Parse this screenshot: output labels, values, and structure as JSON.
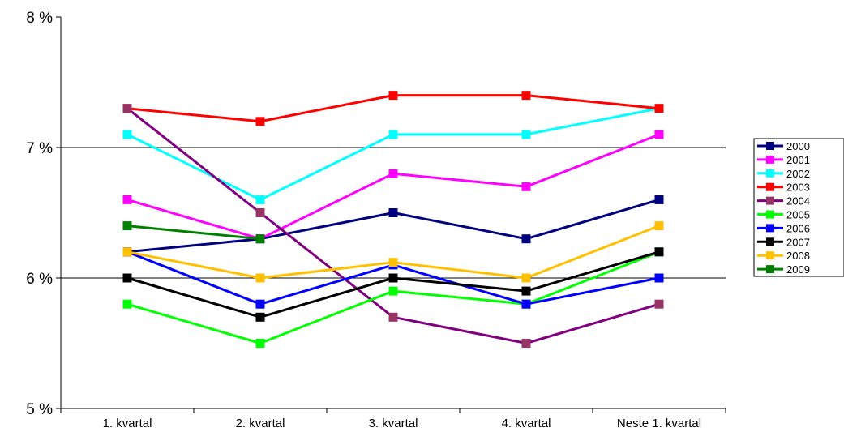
{
  "chart_data": {
    "type": "line",
    "categories": [
      "1. kvartal",
      "2. kvartal",
      "3. kvartal",
      "4. kvartal",
      "Neste 1. kvartal"
    ],
    "y_ticks": [
      "5 %",
      "6 %",
      "7 %",
      "8 %"
    ],
    "ylim": [
      5,
      8
    ],
    "grid": "horizontal at 6 % and 7 %",
    "legend_position": "right",
    "series": [
      {
        "name": "2000",
        "color": "#000080",
        "values": [
          6.2,
          6.3,
          6.5,
          6.3,
          6.6
        ]
      },
      {
        "name": "2001",
        "color": "#ff00ff",
        "values": [
          6.6,
          6.3,
          6.8,
          6.7,
          7.1
        ]
      },
      {
        "name": "2002",
        "color": "#00ffff",
        "values": [
          7.1,
          6.6,
          7.1,
          7.1,
          7.3
        ]
      },
      {
        "name": "2003",
        "color": "#ff0000",
        "values": [
          7.3,
          7.2,
          7.4,
          7.4,
          7.3
        ]
      },
      {
        "name": "2004",
        "color": "#800080",
        "marker_color": "#993366",
        "values": [
          7.3,
          6.5,
          5.7,
          5.5,
          5.8
        ]
      },
      {
        "name": "2005",
        "color": "#00ff00",
        "values": [
          5.8,
          5.5,
          5.9,
          5.8,
          6.2
        ]
      },
      {
        "name": "2006",
        "color": "#0000ff",
        "values": [
          6.2,
          5.8,
          6.1,
          5.8,
          6.0
        ]
      },
      {
        "name": "2007",
        "color": "#000000",
        "values": [
          6.0,
          5.7,
          6.0,
          5.9,
          6.2
        ]
      },
      {
        "name": "2008",
        "color": "#ffc000",
        "values": [
          6.2,
          6.0,
          6.12,
          6.0,
          6.4
        ]
      },
      {
        "name": "2009",
        "color": "#008000",
        "values": [
          6.4,
          6.3,
          null,
          null,
          null
        ]
      }
    ]
  }
}
